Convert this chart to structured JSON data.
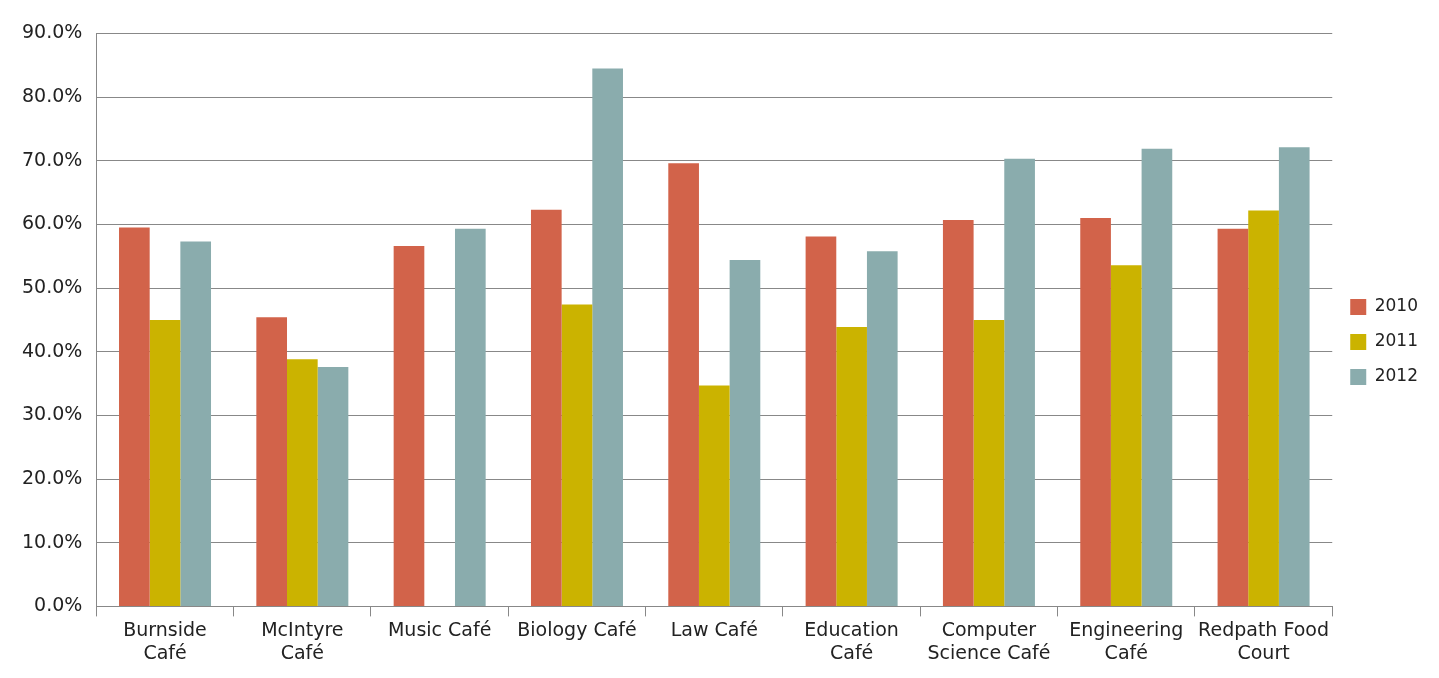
{
  "chart_data": {
    "type": "bar",
    "categories": [
      "Burnside Café",
      "McIntyre Café",
      "Music Café",
      "Biology Café",
      "Law Café",
      "Education Café",
      "Computer Science Café",
      "Engineering Café",
      "Redpath Food Court"
    ],
    "series": [
      {
        "name": "2010",
        "color": "#d2634a",
        "values": [
          59.5,
          45.4,
          56.6,
          62.3,
          69.6,
          58.1,
          60.7,
          61.0,
          59.3
        ]
      },
      {
        "name": "2011",
        "color": "#cbb300",
        "values": [
          45.0,
          38.8,
          null,
          47.4,
          34.7,
          43.9,
          45.0,
          53.6,
          62.2
        ]
      },
      {
        "name": "2012",
        "color": "#8aacad",
        "values": [
          57.3,
          37.6,
          59.3,
          84.5,
          54.4,
          55.8,
          70.3,
          71.9,
          72.1
        ]
      }
    ],
    "ylim": [
      0,
      90
    ],
    "yticks": [
      {
        "value": 0,
        "label": "0.0%"
      },
      {
        "value": 10,
        "label": "10.0%"
      },
      {
        "value": 20,
        "label": "20.0%"
      },
      {
        "value": 30,
        "label": "30.0%"
      },
      {
        "value": 40,
        "label": "40.0%"
      },
      {
        "value": 50,
        "label": "50.0%"
      },
      {
        "value": 60,
        "label": "60.0%"
      },
      {
        "value": 70,
        "label": "70.0%"
      },
      {
        "value": 80,
        "label": "80.0%"
      },
      {
        "value": 90,
        "label": "90.0%"
      }
    ],
    "grid": "y",
    "legend": "right"
  }
}
